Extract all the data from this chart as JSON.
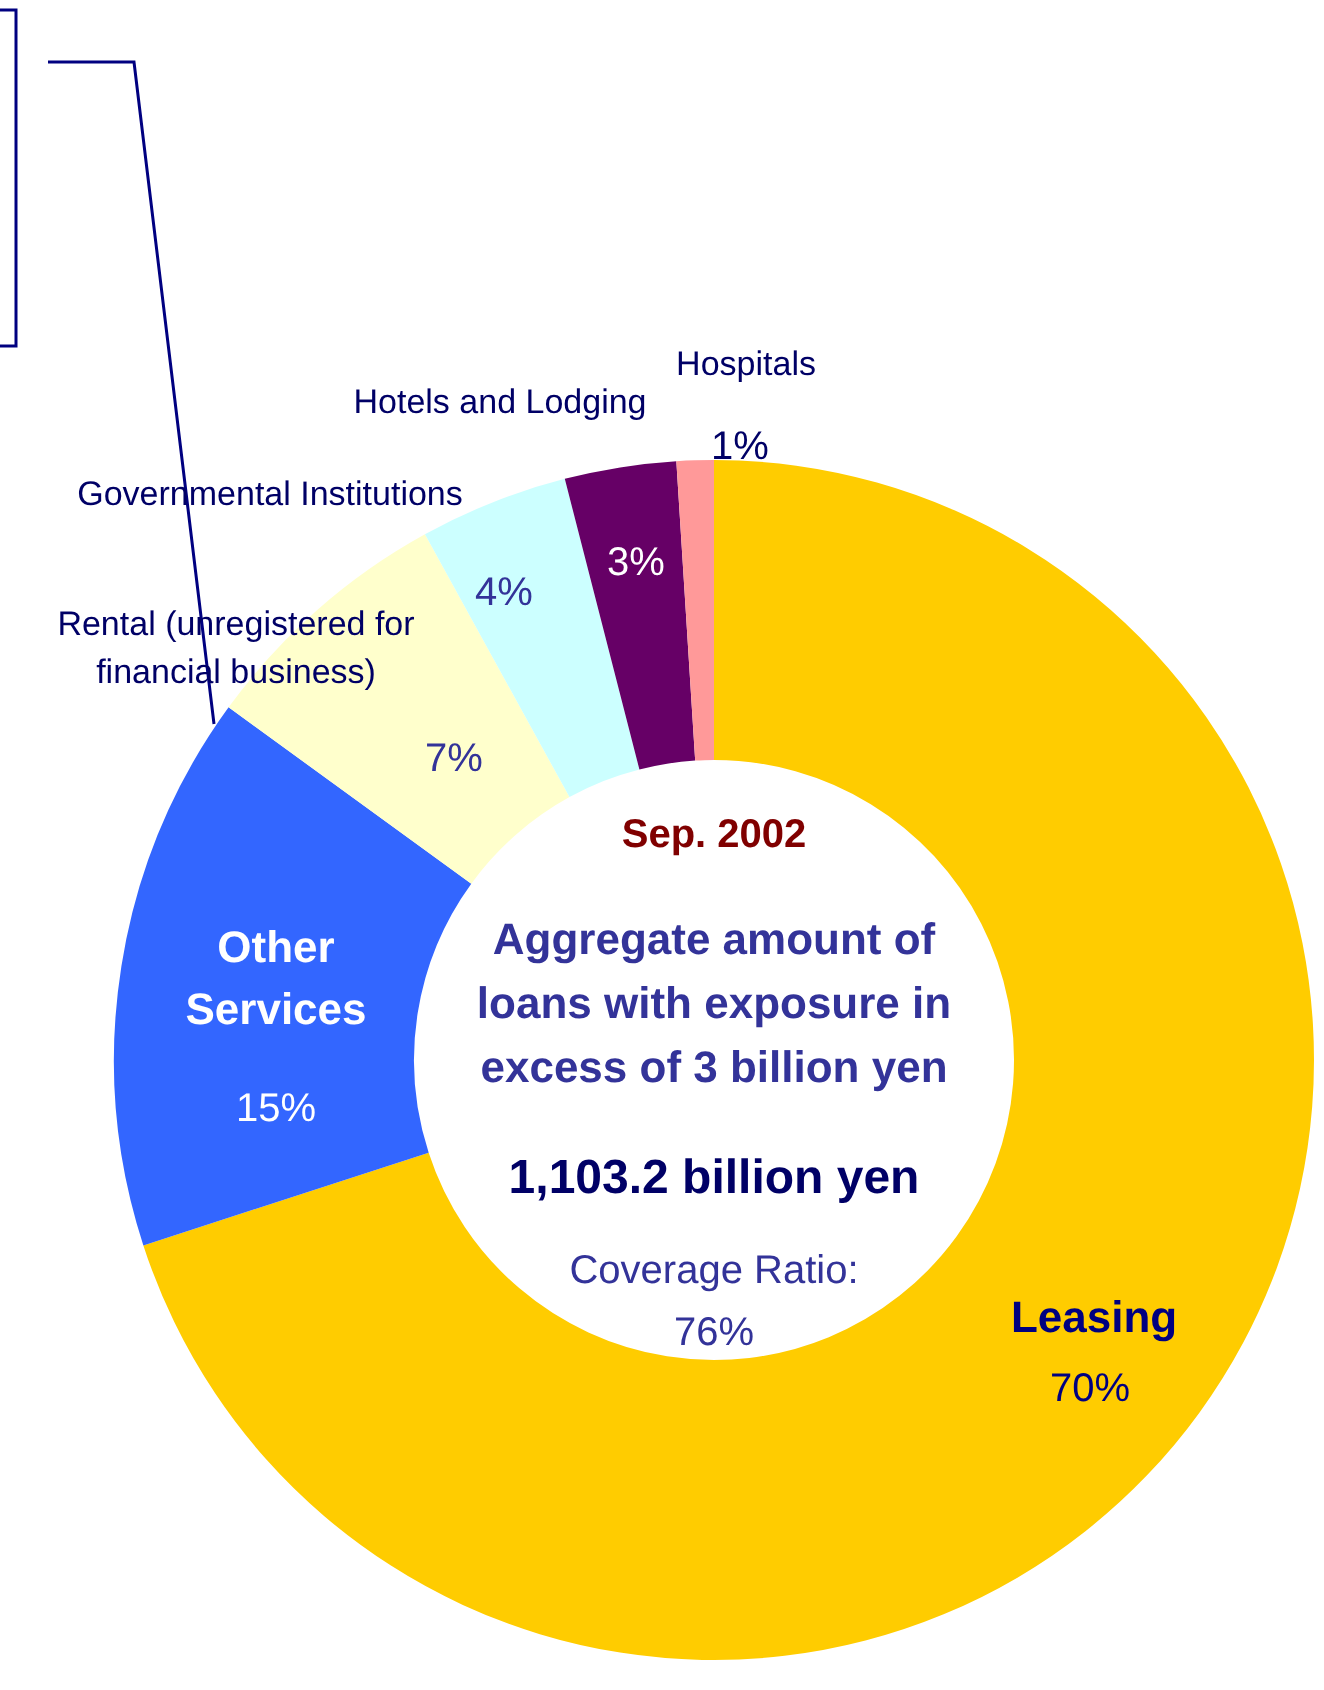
{
  "chart_data": {
    "type": "donut",
    "title": "Sep. 2002",
    "subtitle": "Aggregate amount of loans with exposure in excess of 3 billion yen",
    "categories": [
      "Leasing",
      "Other Services",
      "Rental (unregistered for financial business)",
      "Governmental Institutions",
      "Hotels and Lodging",
      "Hospitals"
    ],
    "values": [
      70,
      15,
      7,
      4,
      3,
      1
    ],
    "colors": [
      "#ffcc00",
      "#3366ff",
      "#ffffcc",
      "#ccffff",
      "#660066",
      "#ff9999"
    ],
    "annotations": [
      "1,103.2 billion yen",
      "Coverage Ratio: 76%"
    ],
    "value_labels": [
      "70%",
      "15%",
      "7%",
      "4%",
      "3%",
      "1%"
    ],
    "legend": false
  }
}
